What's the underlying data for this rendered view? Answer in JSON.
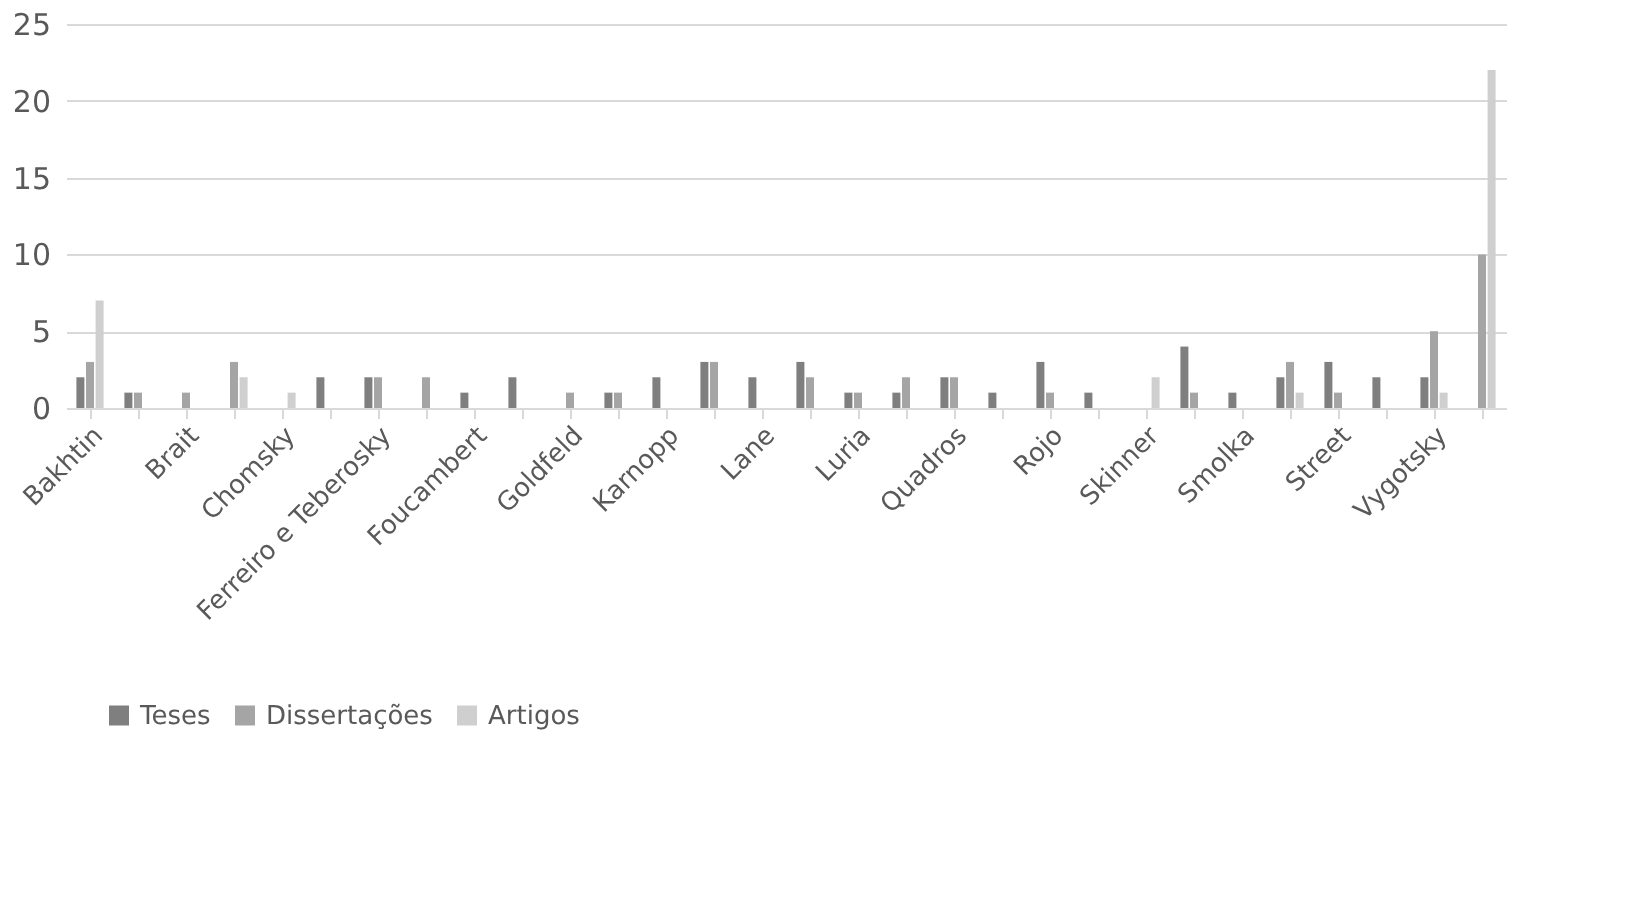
{
  "chart_data": {
    "type": "bar",
    "categories": [
      "Bakhtin",
      null,
      "Brait",
      null,
      "Chomsky",
      null,
      "Ferreiro e Teberosky",
      null,
      "Foucambert",
      null,
      "Goldfeld",
      null,
      "Karnopp",
      null,
      "Lane",
      null,
      "Luria",
      null,
      "Quadros",
      null,
      "Rojo",
      null,
      "Skinner",
      null,
      "Smolka",
      null,
      "Street",
      null,
      "Vygotsky",
      null
    ],
    "series": [
      {
        "name": "Teses",
        "color": "#7f7f7f",
        "values": [
          2,
          1,
          null,
          null,
          null,
          2,
          2,
          null,
          1,
          2,
          null,
          1,
          2,
          3,
          2,
          3,
          1,
          1,
          2,
          1,
          3,
          1,
          null,
          4,
          1,
          2,
          3,
          2,
          2,
          null
        ]
      },
      {
        "name": "Dissertações",
        "color": "#a5a5a5",
        "values": [
          3,
          1,
          1,
          3,
          null,
          null,
          2,
          2,
          null,
          null,
          1,
          1,
          null,
          3,
          null,
          2,
          1,
          2,
          2,
          null,
          1,
          null,
          null,
          1,
          null,
          3,
          1,
          null,
          5,
          10
        ]
      },
      {
        "name": "Artigos",
        "color": "#cfcfcf",
        "values": [
          7,
          null,
          null,
          2,
          1,
          null,
          null,
          null,
          null,
          null,
          null,
          null,
          null,
          null,
          null,
          null,
          null,
          null,
          null,
          null,
          null,
          null,
          2,
          null,
          null,
          1,
          null,
          null,
          1,
          22
        ]
      }
    ],
    "ylim": [
      0,
      25
    ],
    "yticks": [
      0,
      5,
      10,
      15,
      20,
      25
    ],
    "grid": "y",
    "legend": "bottom"
  }
}
